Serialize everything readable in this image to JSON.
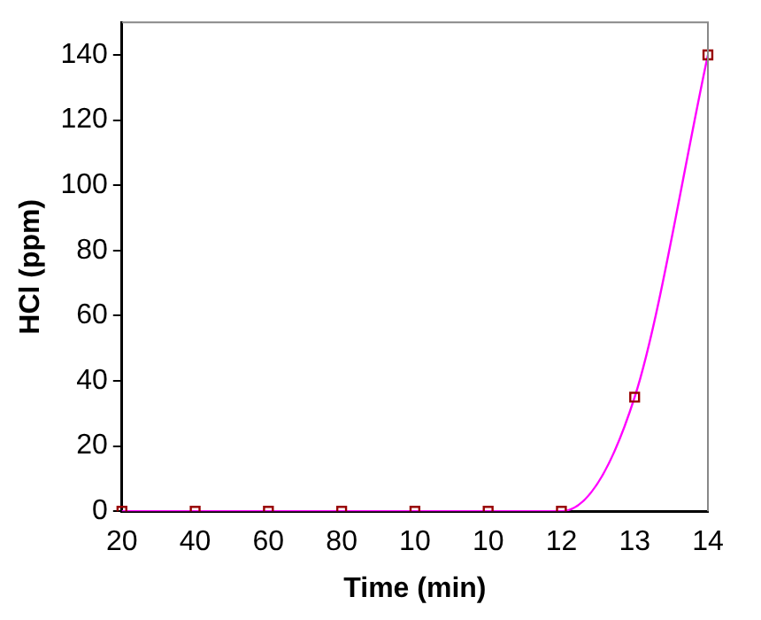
{
  "chart_data": {
    "type": "line",
    "xlabel": "Time (min)",
    "ylabel": "HCl (ppm)",
    "categories": [
      "20",
      "40",
      "60",
      "80",
      "10",
      "10",
      "12",
      "13",
      "14"
    ],
    "series": [
      {
        "color": "#ff00ff",
        "values": [
          0,
          0,
          0,
          0,
          0,
          0,
          0,
          35,
          140
        ]
      }
    ],
    "ylim": [
      0,
      150
    ],
    "yticks": [
      0,
      20,
      40,
      60,
      80,
      100,
      120,
      140
    ],
    "grid": false,
    "legend": false,
    "marker": "square",
    "line_style": "solid"
  }
}
